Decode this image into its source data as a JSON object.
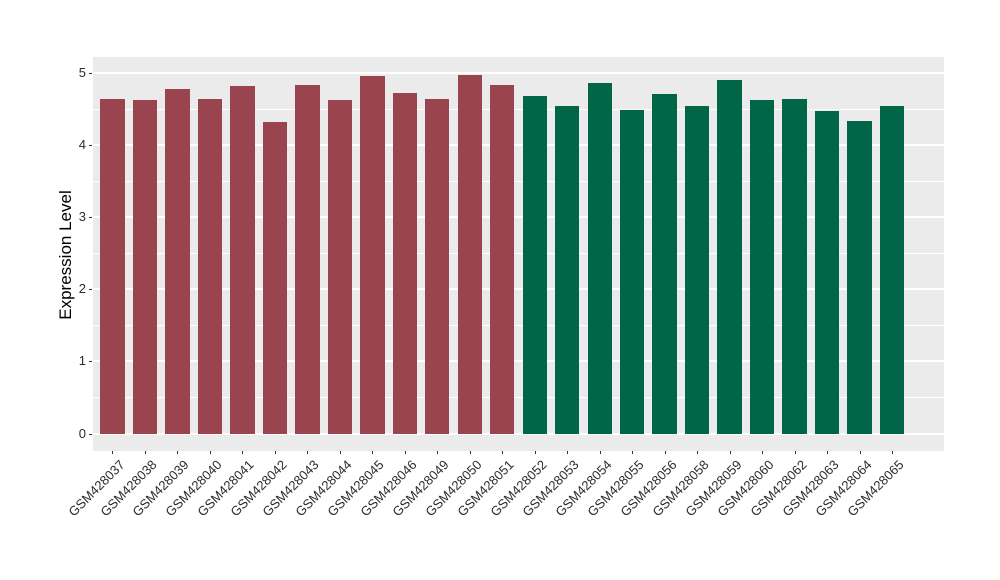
{
  "chart_data": {
    "type": "bar",
    "title": "",
    "xlabel": "",
    "ylabel": "Expression Level",
    "ylim": [
      0,
      5
    ],
    "yticks": [
      0,
      1,
      2,
      3,
      4,
      5
    ],
    "grid": "major and minor on, white on grey panel",
    "legend_position": "none",
    "panel_bg": "#EBEBEB",
    "grid_color": "#FFFFFF",
    "group_colors": {
      "red_group": "#9A4450",
      "green_group": "#006647"
    },
    "categories": [
      "GSM428037",
      "GSM428038",
      "GSM428039",
      "GSM428040",
      "GSM428041",
      "GSM428042",
      "GSM428043",
      "GSM428044",
      "GSM428045",
      "GSM428046",
      "GSM428049",
      "GSM428050",
      "GSM428051",
      "GSM428052",
      "GSM428053",
      "GSM428054",
      "GSM428055",
      "GSM428056",
      "GSM428058",
      "GSM428059",
      "GSM428060",
      "GSM428062",
      "GSM428063",
      "GSM428064",
      "GSM428065"
    ],
    "values": [
      4.64,
      4.63,
      4.78,
      4.64,
      4.82,
      4.33,
      4.84,
      4.63,
      4.96,
      4.72,
      4.64,
      4.98,
      4.84,
      4.68,
      4.55,
      4.86,
      4.49,
      4.71,
      4.54,
      4.91,
      4.63,
      4.64,
      4.47,
      4.34,
      4.55
    ],
    "bar_colors": [
      "#9A4450",
      "#9A4450",
      "#9A4450",
      "#9A4450",
      "#9A4450",
      "#9A4450",
      "#9A4450",
      "#9A4450",
      "#9A4450",
      "#9A4450",
      "#9A4450",
      "#9A4450",
      "#9A4450",
      "#006647",
      "#006647",
      "#006647",
      "#006647",
      "#006647",
      "#006647",
      "#006647",
      "#006647",
      "#006647",
      "#006647",
      "#006647",
      "#006647"
    ]
  }
}
